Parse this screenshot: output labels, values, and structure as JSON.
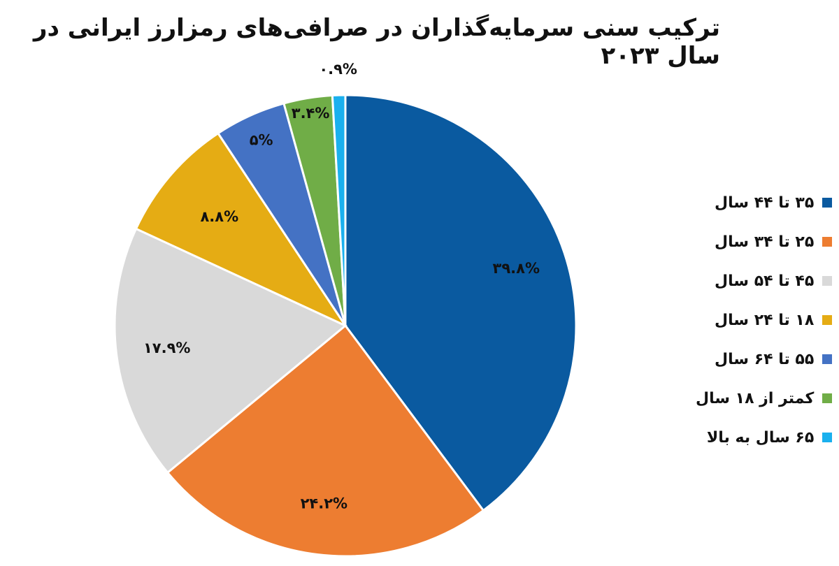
{
  "chart_data": {
    "type": "pie",
    "title": "ترکیب سنی سرمایه‌گذاران در صرافی‌های رمزارز ایرانی در سال ۲۰۲۳",
    "legend_position": "right",
    "slices": [
      {
        "label": "۳۵ تا ۴۴ سال",
        "value": 39.8,
        "value_label": "۳۹.۸%",
        "color": "#0a5aa0"
      },
      {
        "label": "۲۵ تا ۳۴ سال",
        "value": 24.2,
        "value_label": "۲۴.۲%",
        "color": "#ed7d31"
      },
      {
        "label": "۴۵ تا ۵۴ سال",
        "value": 17.9,
        "value_label": "۱۷.۹%",
        "color": "#d9d9d9"
      },
      {
        "label": "۱۸ تا ۲۴ سال",
        "value": 8.8,
        "value_label": "۸.۸%",
        "color": "#e5ac14"
      },
      {
        "label": "۵۵ تا ۶۴ سال",
        "value": 5,
        "value_label": "۵%",
        "color": "#4472c4"
      },
      {
        "label": "کمتر از ۱۸ سال",
        "value": 3.4,
        "value_label": "۳.۴%",
        "color": "#70ad47"
      },
      {
        "label": "۶۵ سال به بالا",
        "value": 0.9,
        "value_label": "۰.۹%",
        "color": "#1ab0ee"
      }
    ]
  }
}
